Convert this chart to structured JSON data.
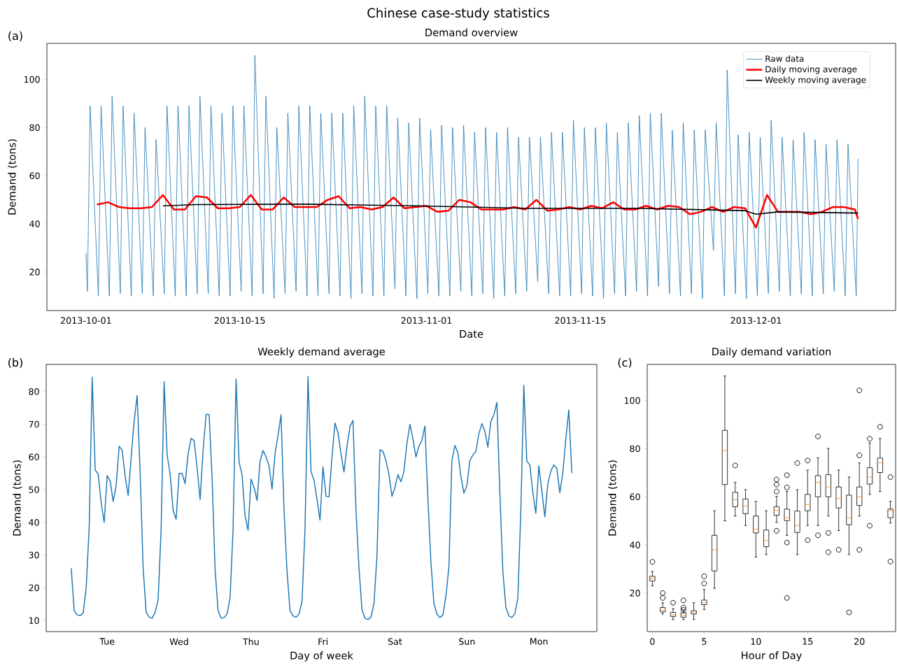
{
  "chart_data": [
    {
      "type": "line",
      "title": "Demand overview",
      "xlabel": "Date",
      "ylabel": "Demand (tons)",
      "annotations": [
        "Chinese case-study statistics",
        "(a)"
      ],
      "xlim": [
        "2013-09-27T10:30",
        "2013-12-13T17:00"
      ],
      "xticks": [
        "2013-10-01",
        "2013-10-15",
        "2013-11-01",
        "2013-11-15",
        "2013-12-01"
      ],
      "ylim": [
        4,
        115
      ],
      "yticks": [
        20,
        40,
        60,
        80,
        100
      ],
      "legend": "top right",
      "series": [
        {
          "name": "Raw data",
          "color": "#1f77b4",
          "x": [
            "2013-10-01T00:00",
            "2013-10-01T03:00",
            "2013-10-01T09:00",
            "2013-10-02T03:00",
            "2013-10-02T09:00",
            "2013-10-03T03:00",
            "2013-10-03T09:00",
            "2013-10-04T03:00",
            "2013-10-04T09:00",
            "2013-10-05T03:00",
            "2013-10-05T09:00",
            "2013-10-06T03:00",
            "2013-10-06T09:00",
            "2013-10-07T03:00",
            "2013-10-07T09:00",
            "2013-10-08T03:00",
            "2013-10-08T09:00",
            "2013-10-09T03:00",
            "2013-10-09T09:00",
            "2013-10-10T03:00",
            "2013-10-10T09:00",
            "2013-10-11T03:00",
            "2013-10-11T09:00",
            "2013-10-12T03:00",
            "2013-10-12T09:00",
            "2013-10-13T03:00",
            "2013-10-13T09:00",
            "2013-10-14T03:00",
            "2013-10-14T09:00",
            "2013-10-15T03:00",
            "2013-10-15T09:00",
            "2013-10-16T03:00",
            "2013-10-16T09:00",
            "2013-10-17T03:00",
            "2013-10-17T09:00",
            "2013-10-18T03:00",
            "2013-10-18T09:00",
            "2013-10-19T03:00",
            "2013-10-19T09:00",
            "2013-10-20T03:00",
            "2013-10-20T09:00",
            "2013-10-21T03:00",
            "2013-10-21T09:00",
            "2013-10-22T03:00",
            "2013-10-22T09:00",
            "2013-10-23T03:00",
            "2013-10-23T09:00",
            "2013-10-24T03:00",
            "2013-10-24T09:00",
            "2013-10-25T03:00",
            "2013-10-25T09:00",
            "2013-10-26T03:00",
            "2013-10-26T09:00",
            "2013-10-27T03:00",
            "2013-10-27T09:00",
            "2013-10-28T03:00",
            "2013-10-28T09:00",
            "2013-10-29T03:00",
            "2013-10-29T09:00",
            "2013-10-30T03:00",
            "2013-10-30T09:00",
            "2013-10-31T03:00",
            "2013-10-31T09:00",
            "2013-11-01T03:00",
            "2013-11-01T09:00",
            "2013-11-02T03:00",
            "2013-11-02T09:00",
            "2013-11-03T03:00",
            "2013-11-03T09:00",
            "2013-11-04T03:00",
            "2013-11-04T09:00",
            "2013-11-05T03:00",
            "2013-11-05T09:00",
            "2013-11-06T03:00",
            "2013-11-06T09:00",
            "2013-11-07T03:00",
            "2013-11-07T09:00",
            "2013-11-08T03:00",
            "2013-11-08T09:00",
            "2013-11-09T03:00",
            "2013-11-09T09:00",
            "2013-11-10T03:00",
            "2013-11-10T09:00",
            "2013-11-11T03:00",
            "2013-11-11T09:00",
            "2013-11-12T03:00",
            "2013-11-12T09:00",
            "2013-11-13T03:00",
            "2013-11-13T09:00",
            "2013-11-14T03:00",
            "2013-11-14T09:00",
            "2013-11-15T03:00",
            "2013-11-15T09:00",
            "2013-11-16T03:00",
            "2013-11-16T09:00",
            "2013-11-17T03:00",
            "2013-11-17T09:00",
            "2013-11-18T03:00",
            "2013-11-18T09:00",
            "2013-11-19T03:00",
            "2013-11-19T09:00",
            "2013-11-20T03:00",
            "2013-11-20T09:00",
            "2013-11-21T03:00",
            "2013-11-21T09:00",
            "2013-11-22T03:00",
            "2013-11-22T09:00",
            "2013-11-23T03:00",
            "2013-11-23T09:00",
            "2013-11-24T03:00",
            "2013-11-24T09:00",
            "2013-11-25T03:00",
            "2013-11-25T09:00",
            "2013-11-26T03:00",
            "2013-11-26T09:00",
            "2013-11-27T03:00",
            "2013-11-27T09:00",
            "2013-11-28T03:00",
            "2013-11-28T09:00",
            "2013-11-29T03:00",
            "2013-11-29T09:00",
            "2013-11-30T03:00",
            "2013-11-30T09:00",
            "2013-12-01T03:00",
            "2013-12-01T09:00",
            "2013-12-02T03:00",
            "2013-12-02T09:00",
            "2013-12-03T03:00",
            "2013-12-03T09:00",
            "2013-12-04T03:00",
            "2013-12-04T09:00",
            "2013-12-05T03:00",
            "2013-12-05T09:00",
            "2013-12-06T03:00",
            "2013-12-06T09:00",
            "2013-12-07T03:00",
            "2013-12-07T09:00",
            "2013-12-08T03:00",
            "2013-12-08T09:00",
            "2013-12-09T03:00",
            "2013-12-09T09:00",
            "2013-12-10T03:00",
            "2013-12-10T07:00"
          ],
          "values": [
            28,
            12,
            89,
            10,
            89,
            10,
            93,
            11,
            89,
            10,
            86,
            11,
            80,
            10,
            75,
            11,
            89,
            10,
            89,
            10,
            89,
            11,
            93,
            11,
            89,
            10,
            86,
            10,
            89,
            12,
            89,
            10,
            110,
            11,
            93,
            9,
            80,
            11,
            86,
            12,
            89,
            10,
            89,
            10,
            86,
            11,
            86,
            10,
            86,
            9,
            89,
            11,
            93,
            10,
            89,
            10,
            89,
            13,
            84,
            10,
            82,
            9,
            84,
            11,
            79,
            10,
            81,
            10,
            80,
            12,
            81,
            10,
            78,
            11,
            80,
            9,
            78,
            10,
            80,
            11,
            76,
            12,
            76,
            16,
            76,
            11,
            78,
            10,
            78,
            10,
            83,
            11,
            80,
            10,
            80,
            9,
            82,
            11,
            78,
            10,
            82,
            12,
            85,
            10,
            86,
            14,
            86,
            11,
            79,
            10,
            82,
            11,
            79,
            9,
            79,
            29,
            82,
            10,
            104,
            11,
            77,
            9,
            78,
            10,
            76,
            11,
            83,
            12,
            76,
            10,
            75,
            11,
            78,
            10,
            75,
            11,
            73,
            12,
            75,
            10,
            73,
            10,
            67
          ]
        },
        {
          "name": "Daily moving average",
          "color": "#ff0000",
          "x": [
            "2013-10-02",
            "2013-10-03",
            "2013-10-04",
            "2013-10-05",
            "2013-10-06",
            "2013-10-07",
            "2013-10-08",
            "2013-10-09",
            "2013-10-10",
            "2013-10-11",
            "2013-10-12",
            "2013-10-13",
            "2013-10-14",
            "2013-10-15",
            "2013-10-16",
            "2013-10-17",
            "2013-10-18",
            "2013-10-19",
            "2013-10-20",
            "2013-10-21",
            "2013-10-22",
            "2013-10-23",
            "2013-10-24",
            "2013-10-25",
            "2013-10-26",
            "2013-10-27",
            "2013-10-28",
            "2013-10-29",
            "2013-10-30",
            "2013-10-31",
            "2013-11-01",
            "2013-11-02",
            "2013-11-03",
            "2013-11-04",
            "2013-11-05",
            "2013-11-06",
            "2013-11-07",
            "2013-11-08",
            "2013-11-09",
            "2013-11-10",
            "2013-11-11",
            "2013-11-12",
            "2013-11-13",
            "2013-11-14",
            "2013-11-15",
            "2013-11-16",
            "2013-11-17",
            "2013-11-18",
            "2013-11-19",
            "2013-11-20",
            "2013-11-21",
            "2013-11-22",
            "2013-11-23",
            "2013-11-24",
            "2013-11-25",
            "2013-11-26",
            "2013-11-27",
            "2013-11-28",
            "2013-11-29",
            "2013-11-30",
            "2013-12-01",
            "2013-12-02",
            "2013-12-03",
            "2013-12-04",
            "2013-12-05",
            "2013-12-06",
            "2013-12-07",
            "2013-12-08",
            "2013-12-09",
            "2013-12-10",
            "2013-12-10T07:00"
          ],
          "values": [
            48,
            49,
            47,
            46.5,
            46.5,
            47,
            52,
            46,
            46,
            51.5,
            51,
            46.5,
            46.5,
            47,
            52,
            46,
            46,
            51,
            47,
            47,
            47,
            50,
            51.5,
            46.5,
            47,
            46,
            47,
            51,
            46.5,
            47,
            47.5,
            45,
            45.5,
            50,
            49,
            46,
            46,
            46,
            47,
            46,
            50,
            45.5,
            46,
            47,
            46,
            47.5,
            46.5,
            49,
            46,
            46,
            47.5,
            46,
            47.5,
            47,
            44,
            45,
            47,
            45,
            47,
            46.5,
            38.5,
            52,
            45,
            45,
            45,
            44,
            45,
            47,
            47,
            46,
            42
          ]
        },
        {
          "name": "Weekly moving average",
          "color": "#000000",
          "x": [
            "2013-10-08",
            "2013-10-11",
            "2013-10-21",
            "2013-10-31",
            "2013-11-10",
            "2013-11-20",
            "2013-11-25",
            "2013-11-30",
            "2013-12-01",
            "2013-12-03",
            "2013-12-10T07:00"
          ],
          "values": [
            47.5,
            48,
            48.2,
            47.5,
            46.5,
            46.5,
            46,
            45.5,
            44,
            45,
            44.5
          ]
        }
      ]
    },
    {
      "type": "line",
      "title": "Weekly demand average",
      "xlabel": "Day of week",
      "ylabel": "Demand (tons)",
      "annotations": [
        "(b)"
      ],
      "color": "#1f77b4",
      "categories": [
        null,
        null,
        null,
        null,
        null,
        null,
        null,
        null,
        null,
        null,
        null,
        null,
        "Tue",
        null,
        null,
        null,
        null,
        null,
        null,
        null,
        null,
        null,
        null,
        null,
        null,
        null,
        null,
        null,
        null,
        null,
        null,
        null,
        null,
        null,
        null,
        null,
        "Wed",
        null,
        null,
        null,
        null,
        null,
        null,
        null,
        null,
        null,
        null,
        null,
        null,
        null,
        null,
        null,
        null,
        null,
        null,
        null,
        null,
        null,
        null,
        null,
        "Thu",
        null,
        null,
        null,
        null,
        null,
        null,
        null,
        null,
        null,
        null,
        null,
        null,
        null,
        null,
        null,
        null,
        null,
        null,
        null,
        null,
        null,
        null,
        null,
        "Fri",
        null,
        null,
        null,
        null,
        null,
        null,
        null,
        null,
        null,
        null,
        null,
        null,
        null,
        null,
        null,
        null,
        null,
        null,
        null,
        null,
        null,
        null,
        null,
        "Sat",
        null,
        null,
        null,
        null,
        null,
        null,
        null,
        null,
        null,
        null,
        null,
        null,
        null,
        null,
        null,
        null,
        null,
        null,
        null,
        null,
        null,
        null,
        null,
        "Sun",
        null,
        null,
        null,
        null,
        null,
        null,
        null,
        null,
        null,
        null,
        null,
        null,
        null,
        null,
        null,
        null,
        null,
        null,
        null,
        null,
        null,
        null,
        null,
        "Mon",
        null,
        null,
        null,
        null,
        null,
        null,
        null,
        null,
        null,
        null,
        null
      ],
      "ylim": [
        6.6,
        88.3
      ],
      "yticks": [
        10,
        20,
        30,
        40,
        50,
        60,
        70,
        80
      ],
      "values": [
        26,
        13,
        11.7,
        11.5,
        12.3,
        20,
        38.7,
        84.4,
        56,
        54.8,
        46,
        40,
        54.3,
        52.6,
        46.4,
        51.3,
        63.3,
        62,
        54,
        48.2,
        60,
        71,
        78.8,
        55,
        26,
        12.5,
        11,
        10.7,
        12.5,
        16.3,
        38,
        83,
        60.6,
        54.8,
        43.6,
        41,
        55,
        55,
        51.8,
        61,
        65.7,
        65,
        56.7,
        47,
        62,
        73,
        73,
        53.5,
        25.6,
        13,
        10.7,
        10.9,
        12,
        17,
        38,
        83.8,
        58.4,
        54.6,
        42,
        37.6,
        53.2,
        50.7,
        46.7,
        58.7,
        62,
        60,
        57.3,
        50.2,
        61,
        66.6,
        72.9,
        43.6,
        25,
        13,
        11.4,
        11,
        12,
        15.8,
        38,
        84.6,
        55.6,
        52.9,
        47,
        40.7,
        57,
        48,
        47.8,
        60,
        70.4,
        67.4,
        61,
        55.4,
        63.3,
        69.3,
        71.2,
        43.6,
        26.2,
        13.3,
        10.7,
        10.3,
        11,
        15.2,
        29.7,
        62.2,
        61.7,
        58.9,
        54.6,
        48,
        50.7,
        54.6,
        52.4,
        55.6,
        64.2,
        70,
        65.5,
        60,
        63.3,
        65,
        69.5,
        47,
        27.8,
        15.2,
        12,
        10.9,
        11.7,
        17.4,
        26.4,
        58.9,
        63.5,
        61.3,
        54,
        48.9,
        51.3,
        58.9,
        60.6,
        61.7,
        67.1,
        70.2,
        67.9,
        63,
        70.9,
        72.8,
        76.7,
        49,
        25,
        14.1,
        11.4,
        10.9,
        12,
        16.9,
        43.6,
        81.9,
        58.7,
        57.6,
        49.1,
        42.8,
        57.3,
        49.6,
        41.7,
        51.8,
        55.6,
        57.6,
        56.5,
        49.1,
        55.1,
        65.5,
        74.4,
        55.1
      ]
    },
    {
      "type": "box",
      "title": "Daily demand variation",
      "xlabel": "Hour of Day",
      "ylabel": "Demand (tons)",
      "annotations": [
        "(c)"
      ],
      "color": "#000000",
      "categories": [
        "0",
        null,
        null,
        null,
        null,
        "5",
        null,
        null,
        null,
        null,
        "10",
        null,
        null,
        null,
        null,
        "15",
        null,
        null,
        null,
        null,
        "20",
        null,
        null,
        null
      ],
      "ylim": [
        4,
        115
      ],
      "yticks": [
        20,
        40,
        60,
        80,
        100
      ],
      "boxes": [
        {
          "low": 23,
          "q1": 25,
          "median": 26,
          "q3": 27,
          "high": 29,
          "outliers": [
            33
          ]
        },
        {
          "low": 11.3,
          "q1": 12.2,
          "median": 13,
          "q3": 14,
          "high": 16,
          "outliers": [
            20,
            18
          ]
        },
        {
          "low": 9,
          "q1": 10.3,
          "median": 11,
          "q3": 12,
          "high": 13.5,
          "outliers": [
            16
          ]
        },
        {
          "low": 9,
          "q1": 10,
          "median": 10.8,
          "q3": 11.8,
          "high": 12.7,
          "outliers": [
            17,
            14,
            13
          ]
        },
        {
          "low": 9,
          "q1": 11.3,
          "median": 12,
          "q3": 12.7,
          "high": 16
        },
        {
          "low": 13.2,
          "q1": 15.2,
          "median": 16,
          "q3": 17.1,
          "high": 21.5,
          "outliers": [
            27,
            24
          ]
        },
        {
          "low": 22,
          "q1": 29.2,
          "median": 38,
          "q3": 44,
          "high": 54.2
        },
        {
          "low": 50,
          "q1": 65.1,
          "median": 79.2,
          "q3": 87.6,
          "high": 110.2
        },
        {
          "low": 52,
          "q1": 55.9,
          "median": 58.8,
          "q3": 61.9,
          "high": 66,
          "outliers": [
            73
          ]
        },
        {
          "low": 48.1,
          "q1": 53,
          "median": 56.2,
          "q3": 59.1,
          "high": 63
        },
        {
          "low": 35,
          "q1": 45,
          "median": 46.5,
          "q3": 52,
          "high": 58.1
        },
        {
          "low": 36,
          "q1": 39.3,
          "median": 41.8,
          "q3": 46.2,
          "high": 54.2
        },
        {
          "low": 49.4,
          "q1": 52.3,
          "median": 54.4,
          "q3": 55.9,
          "high": 60.2,
          "outliers": [
            67.2,
            65.1,
            62.2,
            45.9
          ]
        },
        {
          "low": 44,
          "q1": 50.1,
          "median": 51.3,
          "q3": 54.9,
          "high": 62.2,
          "outliers": [
            69,
            63.9,
            41,
            18
          ]
        },
        {
          "low": 36,
          "q1": 45.2,
          "median": 48.1,
          "q3": 54.1,
          "high": 63,
          "outliers": [
            74
          ]
        },
        {
          "low": 48.1,
          "q1": 54.2,
          "median": 56.8,
          "q3": 61,
          "high": 71.1,
          "outliers": [
            75.1,
            42
          ]
        },
        {
          "low": 48.1,
          "q1": 60,
          "median": 66,
          "q3": 68.8,
          "high": 76.2,
          "outliers": [
            85.1,
            44
          ]
        },
        {
          "low": 52,
          "q1": 60,
          "median": 64.1,
          "q3": 69.2,
          "high": 80.1,
          "outliers": [
            45,
            37
          ]
        },
        {
          "low": 46,
          "q1": 55.4,
          "median": 59.3,
          "q3": 64.1,
          "high": 71.1,
          "outliers": [
            38
          ]
        },
        {
          "low": 36,
          "q1": 48.4,
          "median": 51.3,
          "q3": 60.7,
          "high": 68.2,
          "outliers": [
            12
          ]
        },
        {
          "low": 52,
          "q1": 56.4,
          "median": 60,
          "q3": 64.1,
          "high": 74.1,
          "outliers": [
            104.2,
            77.2,
            38
          ]
        },
        {
          "low": 61,
          "q1": 65.3,
          "median": 68.2,
          "q3": 72.1,
          "high": 82.4,
          "outliers": [
            84.1,
            48
          ]
        },
        {
          "low": 62.2,
          "q1": 70.1,
          "median": 74.1,
          "q3": 76.1,
          "high": 84.2,
          "outliers": [
            89.1
          ]
        },
        {
          "low": 49.1,
          "q1": 51.3,
          "median": 54.2,
          "q3": 54.9,
          "high": 58.1,
          "outliers": [
            68.2,
            33.1
          ]
        }
      ]
    }
  ]
}
